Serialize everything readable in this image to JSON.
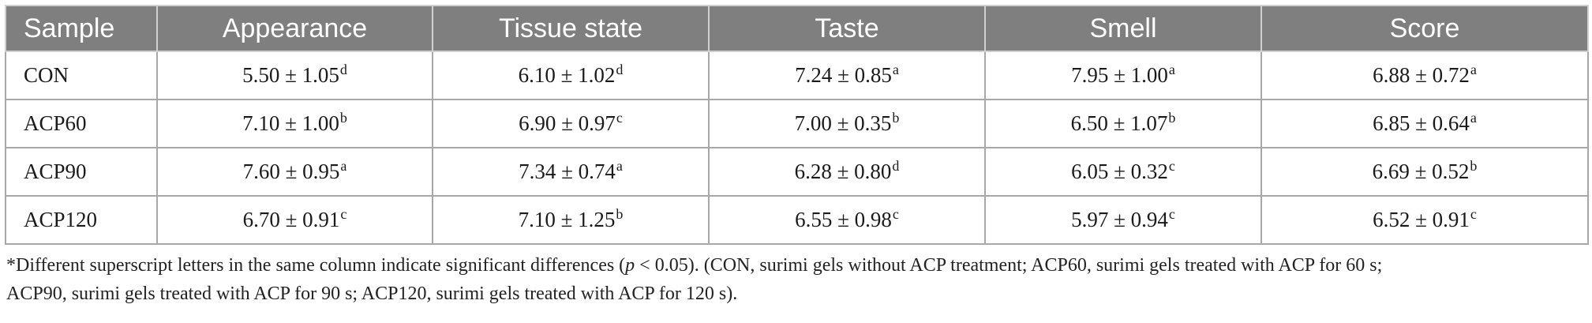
{
  "table": {
    "headers": [
      "Sample",
      "Appearance",
      "Tissue state",
      "Taste",
      "Smell",
      "Score"
    ],
    "rows": [
      {
        "sample": "CON",
        "cells": [
          {
            "value": "5.50 ± 1.05",
            "sup": "d"
          },
          {
            "value": "6.10 ± 1.02",
            "sup": "d"
          },
          {
            "value": "7.24 ± 0.85",
            "sup": "a"
          },
          {
            "value": "7.95 ± 1.00",
            "sup": "a"
          },
          {
            "value": "6.88 ± 0.72",
            "sup": "a"
          }
        ]
      },
      {
        "sample": "ACP60",
        "cells": [
          {
            "value": "7.10 ± 1.00",
            "sup": "b"
          },
          {
            "value": "6.90 ± 0.97",
            "sup": "c"
          },
          {
            "value": "7.00 ± 0.35",
            "sup": "b"
          },
          {
            "value": "6.50 ± 1.07",
            "sup": "b"
          },
          {
            "value": "6.85 ± 0.64",
            "sup": "a"
          }
        ]
      },
      {
        "sample": "ACP90",
        "cells": [
          {
            "value": "7.60 ± 0.95",
            "sup": "a"
          },
          {
            "value": "7.34 ± 0.74",
            "sup": "a"
          },
          {
            "value": "6.28 ± 0.80",
            "sup": "d"
          },
          {
            "value": "6.05 ± 0.32",
            "sup": "c"
          },
          {
            "value": "6.69 ± 0.52",
            "sup": "b"
          }
        ]
      },
      {
        "sample": "ACP120",
        "cells": [
          {
            "value": "6.70 ± 0.91",
            "sup": "c"
          },
          {
            "value": "7.10 ± 1.25",
            "sup": "b"
          },
          {
            "value": "6.55 ± 0.98",
            "sup": "c"
          },
          {
            "value": "5.97 ± 0.94",
            "sup": "c"
          },
          {
            "value": "6.52 ± 0.91",
            "sup": "c"
          }
        ]
      }
    ]
  },
  "footnote": {
    "line1_before_p": "*Different superscript letters in the same column indicate significant differences (",
    "p_symbol": "p",
    "line1_after_p": " < 0.05). (CON, surimi gels without ACP treatment; ACP60, surimi gels treated with ACP for 60 s;",
    "line2": "ACP90, surimi gels treated with ACP for 90 s; ACP120, surimi gels treated with ACP for 120 s)."
  },
  "colors": {
    "header_bg": "#7f7f7f",
    "header_text": "#ffffff",
    "grid": "#a8a8a8"
  }
}
